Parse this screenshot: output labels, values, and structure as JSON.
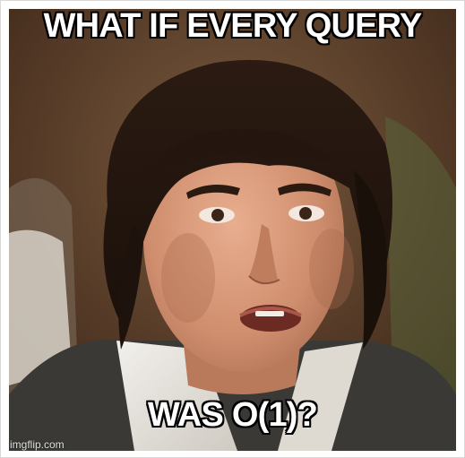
{
  "meme": {
    "top_text": "WHAT IF EVERY QUERY",
    "bottom_text": "WAS O(1)?",
    "watermark": "imgflip.com"
  },
  "colors": {
    "caption_fill": "#ffffff",
    "caption_stroke": "#000000",
    "frame_border": "#d8d8d8"
  }
}
